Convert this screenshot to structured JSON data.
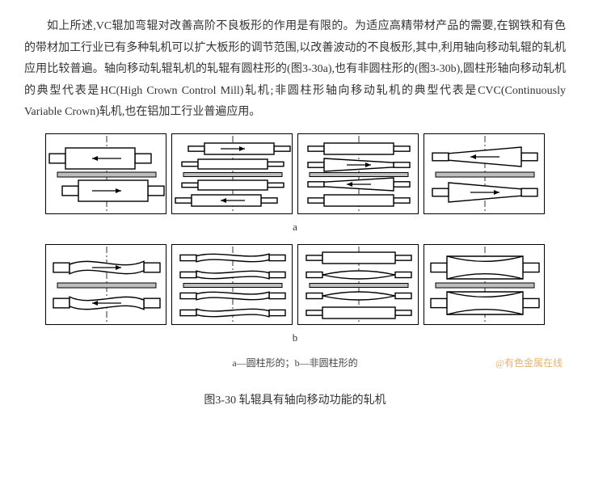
{
  "paragraph": "如上所述,VC辊加弯辊对改善高阶不良板形的作用是有限的。为适应高精带材产品的需要,在钢铁和有色的带材加工行业已有多种轧机可以扩大板形的调节范围,以改善波动的不良板形,其中,利用轴向移动轧辊的轧机应用比较普遍。轴向移动轧辊轧机的轧辊有圆柱形的(图3-30a),也有非圆柱形的(图3-30b),圆柱形轴向移动轧机的典型代表是HC(High Crown Control Mill)轧机;非圆柱形轴向移动轧机的典型代表是CVC(Continuously Variable Crown)轧机,也在铝加工行业普遍应用。",
  "rowLabelA": "a",
  "rowLabelB": "b",
  "legend": "a—圆柱形的；b—非圆柱形的",
  "watermark": "@有色金属在线",
  "caption": "图3-30 轧辊具有轴向移动功能的轧机",
  "style": {
    "stroke": "#000000",
    "strokeWidth": 1.4,
    "stripFill": "#bdbdbd",
    "centerline": "#000000",
    "tileW": 150,
    "tileH": 100
  },
  "rowA": [
    {
      "type": "a2roll",
      "topArrow": "left",
      "botArrow": "right",
      "topShift": -8,
      "botShift": 8
    },
    {
      "type": "a4roll",
      "topArrow": "right",
      "botArrow": "left",
      "topShift": 8,
      "botShift": -8
    },
    {
      "type": "aTaper",
      "topArrow": "right",
      "botArrow": "left"
    },
    {
      "type": "aTaper2",
      "topArrow": "left",
      "botArrow": "right"
    }
  ],
  "rowB": [
    {
      "type": "bCvc2",
      "topArrow": "right",
      "botArrow": "left"
    },
    {
      "type": "bCvc4"
    },
    {
      "type": "bBulge"
    },
    {
      "type": "bBiconv"
    }
  ]
}
